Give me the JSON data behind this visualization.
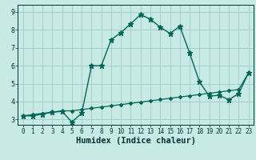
{
  "title": "",
  "xlabel": "Humidex (Indice chaleur)",
  "background_color": "#c8eae5",
  "grid_color": "#a0cccc",
  "line_color": "#006655",
  "xlim": [
    -0.5,
    23.5
  ],
  "ylim": [
    2.7,
    9.4
  ],
  "x": [
    0,
    1,
    2,
    3,
    4,
    5,
    6,
    7,
    8,
    9,
    10,
    11,
    12,
    13,
    14,
    15,
    16,
    17,
    18,
    19,
    20,
    21,
    22,
    23
  ],
  "y_curve1": [
    3.2,
    3.2,
    3.3,
    3.4,
    3.45,
    2.85,
    3.35,
    6.0,
    6.0,
    7.45,
    7.85,
    8.35,
    8.85,
    8.6,
    8.15,
    7.8,
    8.2,
    6.7,
    5.1,
    4.3,
    4.35,
    4.1,
    4.45,
    5.6
  ],
  "y_curve2": [
    3.2,
    3.27,
    3.34,
    3.41,
    3.48,
    3.48,
    3.55,
    3.62,
    3.69,
    3.76,
    3.83,
    3.9,
    3.97,
    4.04,
    4.11,
    4.18,
    4.25,
    4.32,
    4.39,
    4.46,
    4.53,
    4.6,
    4.67,
    5.6
  ],
  "font_color": "#003333",
  "tick_fontsize": 5.5,
  "label_fontsize": 7.5
}
